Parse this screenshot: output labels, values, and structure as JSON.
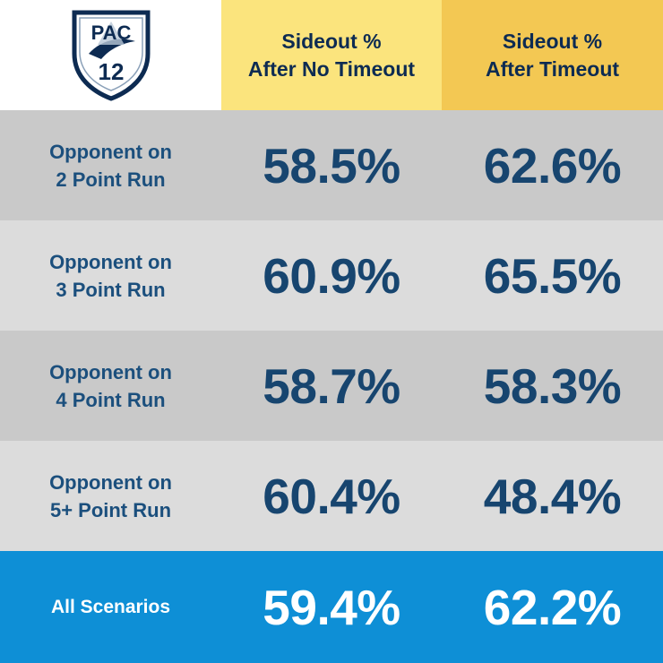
{
  "logo": {
    "text_top": "PAC",
    "text_bottom": "12",
    "icon": "pac12-shield-logo-icon"
  },
  "headers": [
    {
      "line1": "Sideout %",
      "line2": "After No Timeout"
    },
    {
      "line1": "Sideout %",
      "line2": "After Timeout"
    }
  ],
  "rows": [
    {
      "label1": "Opponent on",
      "label2": "2 Point Run",
      "no_timeout": "58.5%",
      "timeout": "62.6%"
    },
    {
      "label1": "Opponent on",
      "label2": "3 Point Run",
      "no_timeout": "60.9%",
      "timeout": "65.5%"
    },
    {
      "label1": "Opponent on",
      "label2": "4 Point Run",
      "no_timeout": "58.7%",
      "timeout": "58.3%"
    },
    {
      "label1": "Opponent on",
      "label2": "5+ Point Run",
      "no_timeout": "60.4%",
      "timeout": "48.4%"
    },
    {
      "label1": "All Scenarios",
      "label2": "",
      "no_timeout": "59.4%",
      "timeout": "62.2%"
    }
  ],
  "colors": {
    "header_col1": "#fbe47d",
    "header_col2": "#f3c853",
    "row_dark": "#c9c9c9",
    "row_light": "#dcdcdc",
    "total_row": "#0e8fd6",
    "text_navy": "#17456f"
  },
  "chart_data": {
    "type": "table",
    "columns": [
      "Sideout % After No Timeout",
      "Sideout % After Timeout"
    ],
    "categories": [
      "Opponent on 2 Point Run",
      "Opponent on 3 Point Run",
      "Opponent on 4 Point Run",
      "Opponent on 5+ Point Run",
      "All Scenarios"
    ],
    "series": [
      {
        "name": "Sideout % After No Timeout",
        "values": [
          58.5,
          60.9,
          58.7,
          60.4,
          59.4
        ]
      },
      {
        "name": "Sideout % After Timeout",
        "values": [
          62.6,
          65.5,
          58.3,
          48.4,
          62.2
        ]
      }
    ],
    "unit": "%"
  }
}
